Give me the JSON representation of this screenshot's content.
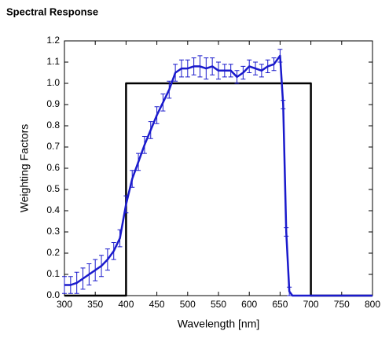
{
  "chart_data": {
    "type": "line",
    "title": "Spectral Response",
    "xlabel": "Wavelength [nm]",
    "ylabel": "Weighting Factors",
    "xlim": [
      300,
      800
    ],
    "xticks": [
      300,
      350,
      400,
      450,
      500,
      550,
      600,
      650,
      700,
      750,
      800
    ],
    "ylim": [
      0,
      1.2
    ],
    "yticks": [
      {
        "value": 0,
        "label": "0.0"
      },
      0.1,
      0.2,
      0.3,
      0.4,
      0.5,
      0.6,
      0.7,
      0.8,
      0.9,
      {
        "value": 1,
        "label": "1.0"
      },
      1.1,
      1.2
    ],
    "series": [
      {
        "color": "#000000",
        "x": [
          300,
          400,
          400,
          700,
          700,
          800
        ],
        "values": [
          0,
          0,
          1,
          1,
          0,
          0
        ]
      },
      {
        "color": "#1a1acc",
        "x": [
          300,
          310,
          320,
          330,
          340,
          350,
          360,
          370,
          380,
          390,
          400,
          410,
          420,
          430,
          440,
          450,
          460,
          470,
          480,
          490,
          500,
          510,
          520,
          530,
          540,
          550,
          560,
          570,
          580,
          590,
          600,
          610,
          620,
          630,
          640,
          650,
          655,
          660,
          665,
          670,
          700,
          750,
          800
        ],
        "values": [
          0.05,
          0.05,
          0.06,
          0.08,
          0.1,
          0.12,
          0.14,
          0.17,
          0.21,
          0.27,
          0.43,
          0.55,
          0.63,
          0.71,
          0.78,
          0.85,
          0.91,
          0.97,
          1.05,
          1.07,
          1.07,
          1.08,
          1.08,
          1.07,
          1.08,
          1.06,
          1.06,
          1.06,
          1.03,
          1.05,
          1.08,
          1.07,
          1.06,
          1.08,
          1.09,
          1.13,
          0.9,
          0.3,
          0.02,
          0,
          0,
          0,
          0
        ],
        "errors": [
          0.04,
          0.04,
          0.05,
          0.05,
          0.05,
          0.05,
          0.05,
          0.05,
          0.04,
          0.04,
          0.04,
          0.04,
          0.04,
          0.04,
          0.04,
          0.04,
          0.04,
          0.04,
          0.04,
          0.04,
          0.04,
          0.04,
          0.05,
          0.05,
          0.04,
          0.04,
          0.03,
          0.03,
          0.03,
          0.03,
          0.03,
          0.03,
          0.03,
          0.03,
          0.03,
          0.03,
          0.02,
          0.02,
          0.02,
          null,
          null,
          null,
          null
        ]
      }
    ]
  }
}
